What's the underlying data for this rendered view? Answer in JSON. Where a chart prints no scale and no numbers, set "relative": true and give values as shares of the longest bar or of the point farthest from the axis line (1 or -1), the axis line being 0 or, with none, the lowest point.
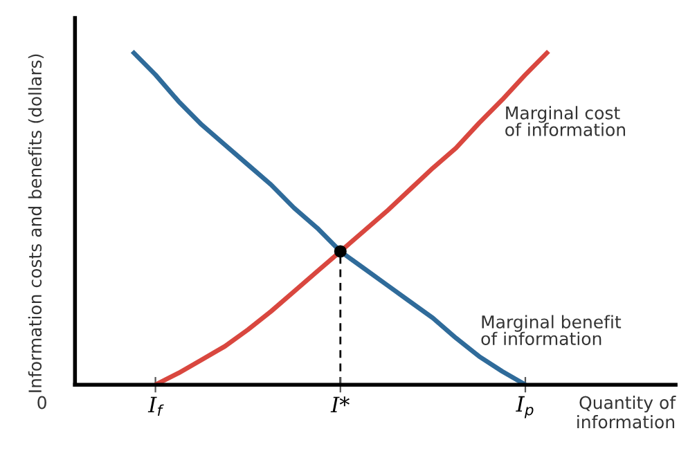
{
  "chart_data": {
    "type": "line",
    "relative": true,
    "ylabel": "Information costs and benefits (dollars)",
    "xlabel": "Quantity of\ninformation",
    "categories": [
      null,
      "I$_{f}$",
      null,
      null,
      null,
      null,
      null,
      null,
      null,
      "I*",
      null,
      null,
      null,
      null,
      null,
      null,
      null,
      "I$_{p}$",
      null
    ],
    "series": [
      {
        "color": "#2f6b9a",
        "values": [
          1.0,
          0.93,
          0.85,
          0.78,
          0.72,
          0.66,
          0.6,
          0.53,
          0.47,
          0.4,
          0.35,
          0.3,
          0.25,
          0.2,
          0.14,
          0.085,
          0.04,
          0,
          null
        ]
      },
      {
        "color": "#d9473f",
        "values": [
          null,
          0,
          0.035,
          0.075,
          0.115,
          0.165,
          0.22,
          0.28,
          0.34,
          0.4,
          0.46,
          0.52,
          0.585,
          0.65,
          0.71,
          0.785,
          0.855,
          0.93,
          1.0
        ]
      },
      {
        "type": "lollipop",
        "color": "#000000",
        "marker": "circle",
        "line_style": "dashed",
        "values": [
          null,
          null,
          null,
          null,
          null,
          null,
          null,
          null,
          null,
          0.4,
          null,
          null,
          null,
          null,
          null,
          null,
          null,
          null,
          null
        ]
      }
    ],
    "annotations": [
      "0",
      "Marginal cost\nof information",
      "Marginal benefit\nof information"
    ],
    "grid": false,
    "legend": false
  }
}
